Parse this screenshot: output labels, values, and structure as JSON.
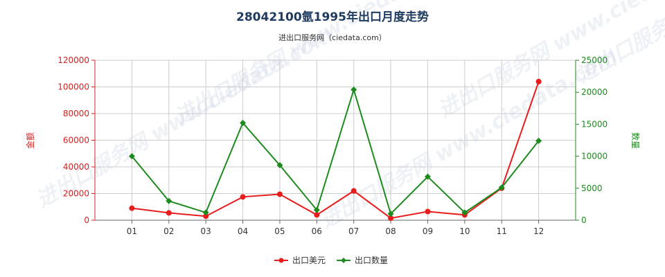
{
  "chart_data": {
    "type": "line",
    "title": "28042100氩1995年出口月度走势",
    "subtitle": "进出口服务网（ciedata.com）",
    "watermark": "进出口服务网 www.ciedata.com",
    "categories": [
      "01",
      "02",
      "03",
      "04",
      "05",
      "06",
      "07",
      "08",
      "09",
      "10",
      "11",
      "12"
    ],
    "y_left": {
      "label": "金额",
      "ylim": [
        0,
        120000
      ],
      "ticks": [
        0,
        20000,
        40000,
        60000,
        80000,
        100000,
        120000
      ],
      "color": "#d42020"
    },
    "y_right": {
      "label": "数量",
      "ylim": [
        0,
        25000
      ],
      "ticks": [
        0,
        5000,
        10000,
        15000,
        20000,
        25000
      ],
      "color": "#1d8a1d"
    },
    "grid": true,
    "legend_position": "bottom-center",
    "series": [
      {
        "name": "出口美元",
        "axis": "left",
        "color": "#e81c1c",
        "values": [
          9000,
          5500,
          3000,
          17500,
          19500,
          4000,
          22000,
          1500,
          6500,
          4000,
          24000,
          104000
        ]
      },
      {
        "name": "出口数量",
        "axis": "right",
        "color": "#1d8a1d",
        "values": [
          10000,
          3000,
          1200,
          15200,
          8600,
          1600,
          20400,
          1000,
          6800,
          1200,
          5100,
          12400
        ]
      }
    ]
  }
}
